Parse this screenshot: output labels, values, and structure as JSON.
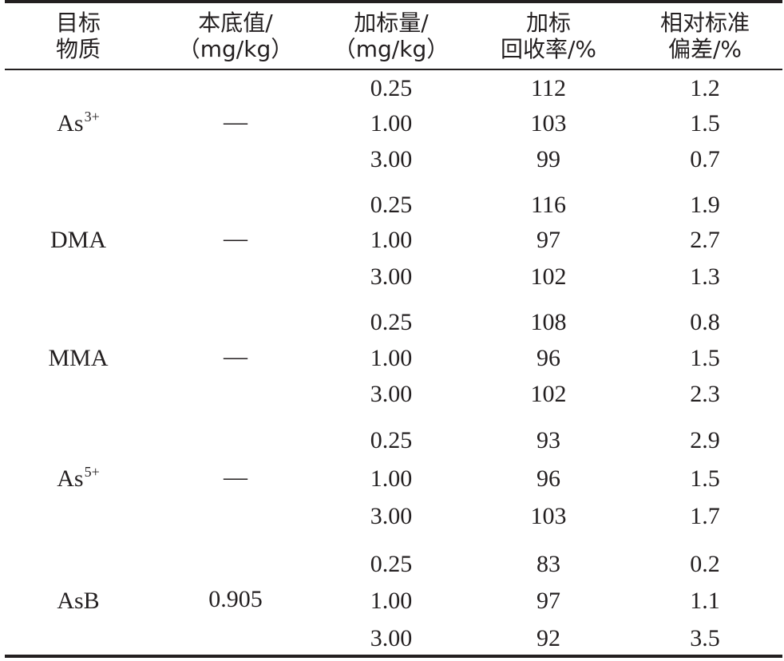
{
  "headers": [
    {
      "line1": "目标",
      "line2": "物质"
    },
    {
      "line1": "本底值/",
      "line2": "（mg/kg）"
    },
    {
      "line1": "加标量/",
      "line2": "（mg/kg）"
    },
    {
      "line1": "加标",
      "line2": "回收率/%"
    },
    {
      "line1": "相对标准",
      "line2": "偏差/%"
    }
  ],
  "groups": [
    {
      "name": "As",
      "charge": "3+",
      "background": "—",
      "rows": [
        {
          "spike": "0.25",
          "recovery": "112",
          "rsd": "1.2"
        },
        {
          "spike": "1.00",
          "recovery": "103",
          "rsd": "1.5"
        },
        {
          "spike": "3.00",
          "recovery": "99",
          "rsd": "0.7"
        }
      ]
    },
    {
      "name": "DMA",
      "charge": "",
      "background": "—",
      "rows": [
        {
          "spike": "0.25",
          "recovery": "116",
          "rsd": "1.9"
        },
        {
          "spike": "1.00",
          "recovery": "97",
          "rsd": "2.7"
        },
        {
          "spike": "3.00",
          "recovery": "102",
          "rsd": "1.3"
        }
      ]
    },
    {
      "name": "MMA",
      "charge": "",
      "background": "—",
      "rows": [
        {
          "spike": "0.25",
          "recovery": "108",
          "rsd": "0.8"
        },
        {
          "spike": "1.00",
          "recovery": "96",
          "rsd": "1.5"
        },
        {
          "spike": "3.00",
          "recovery": "102",
          "rsd": "2.3"
        }
      ]
    },
    {
      "name": "As",
      "charge": "5+",
      "background": "—",
      "rows": [
        {
          "spike": "0.25",
          "recovery": "93",
          "rsd": "2.9"
        },
        {
          "spike": "1.00",
          "recovery": "96",
          "rsd": "1.5"
        },
        {
          "spike": "3.00",
          "recovery": "103",
          "rsd": "1.7"
        }
      ]
    },
    {
      "name": "AsB",
      "charge": "",
      "background": "0.905",
      "rows": [
        {
          "spike": "0.25",
          "recovery": "83",
          "rsd": "0.2"
        },
        {
          "spike": "1.00",
          "recovery": "97",
          "rsd": "1.1"
        },
        {
          "spike": "3.00",
          "recovery": "92",
          "rsd": "3.5"
        }
      ]
    }
  ]
}
